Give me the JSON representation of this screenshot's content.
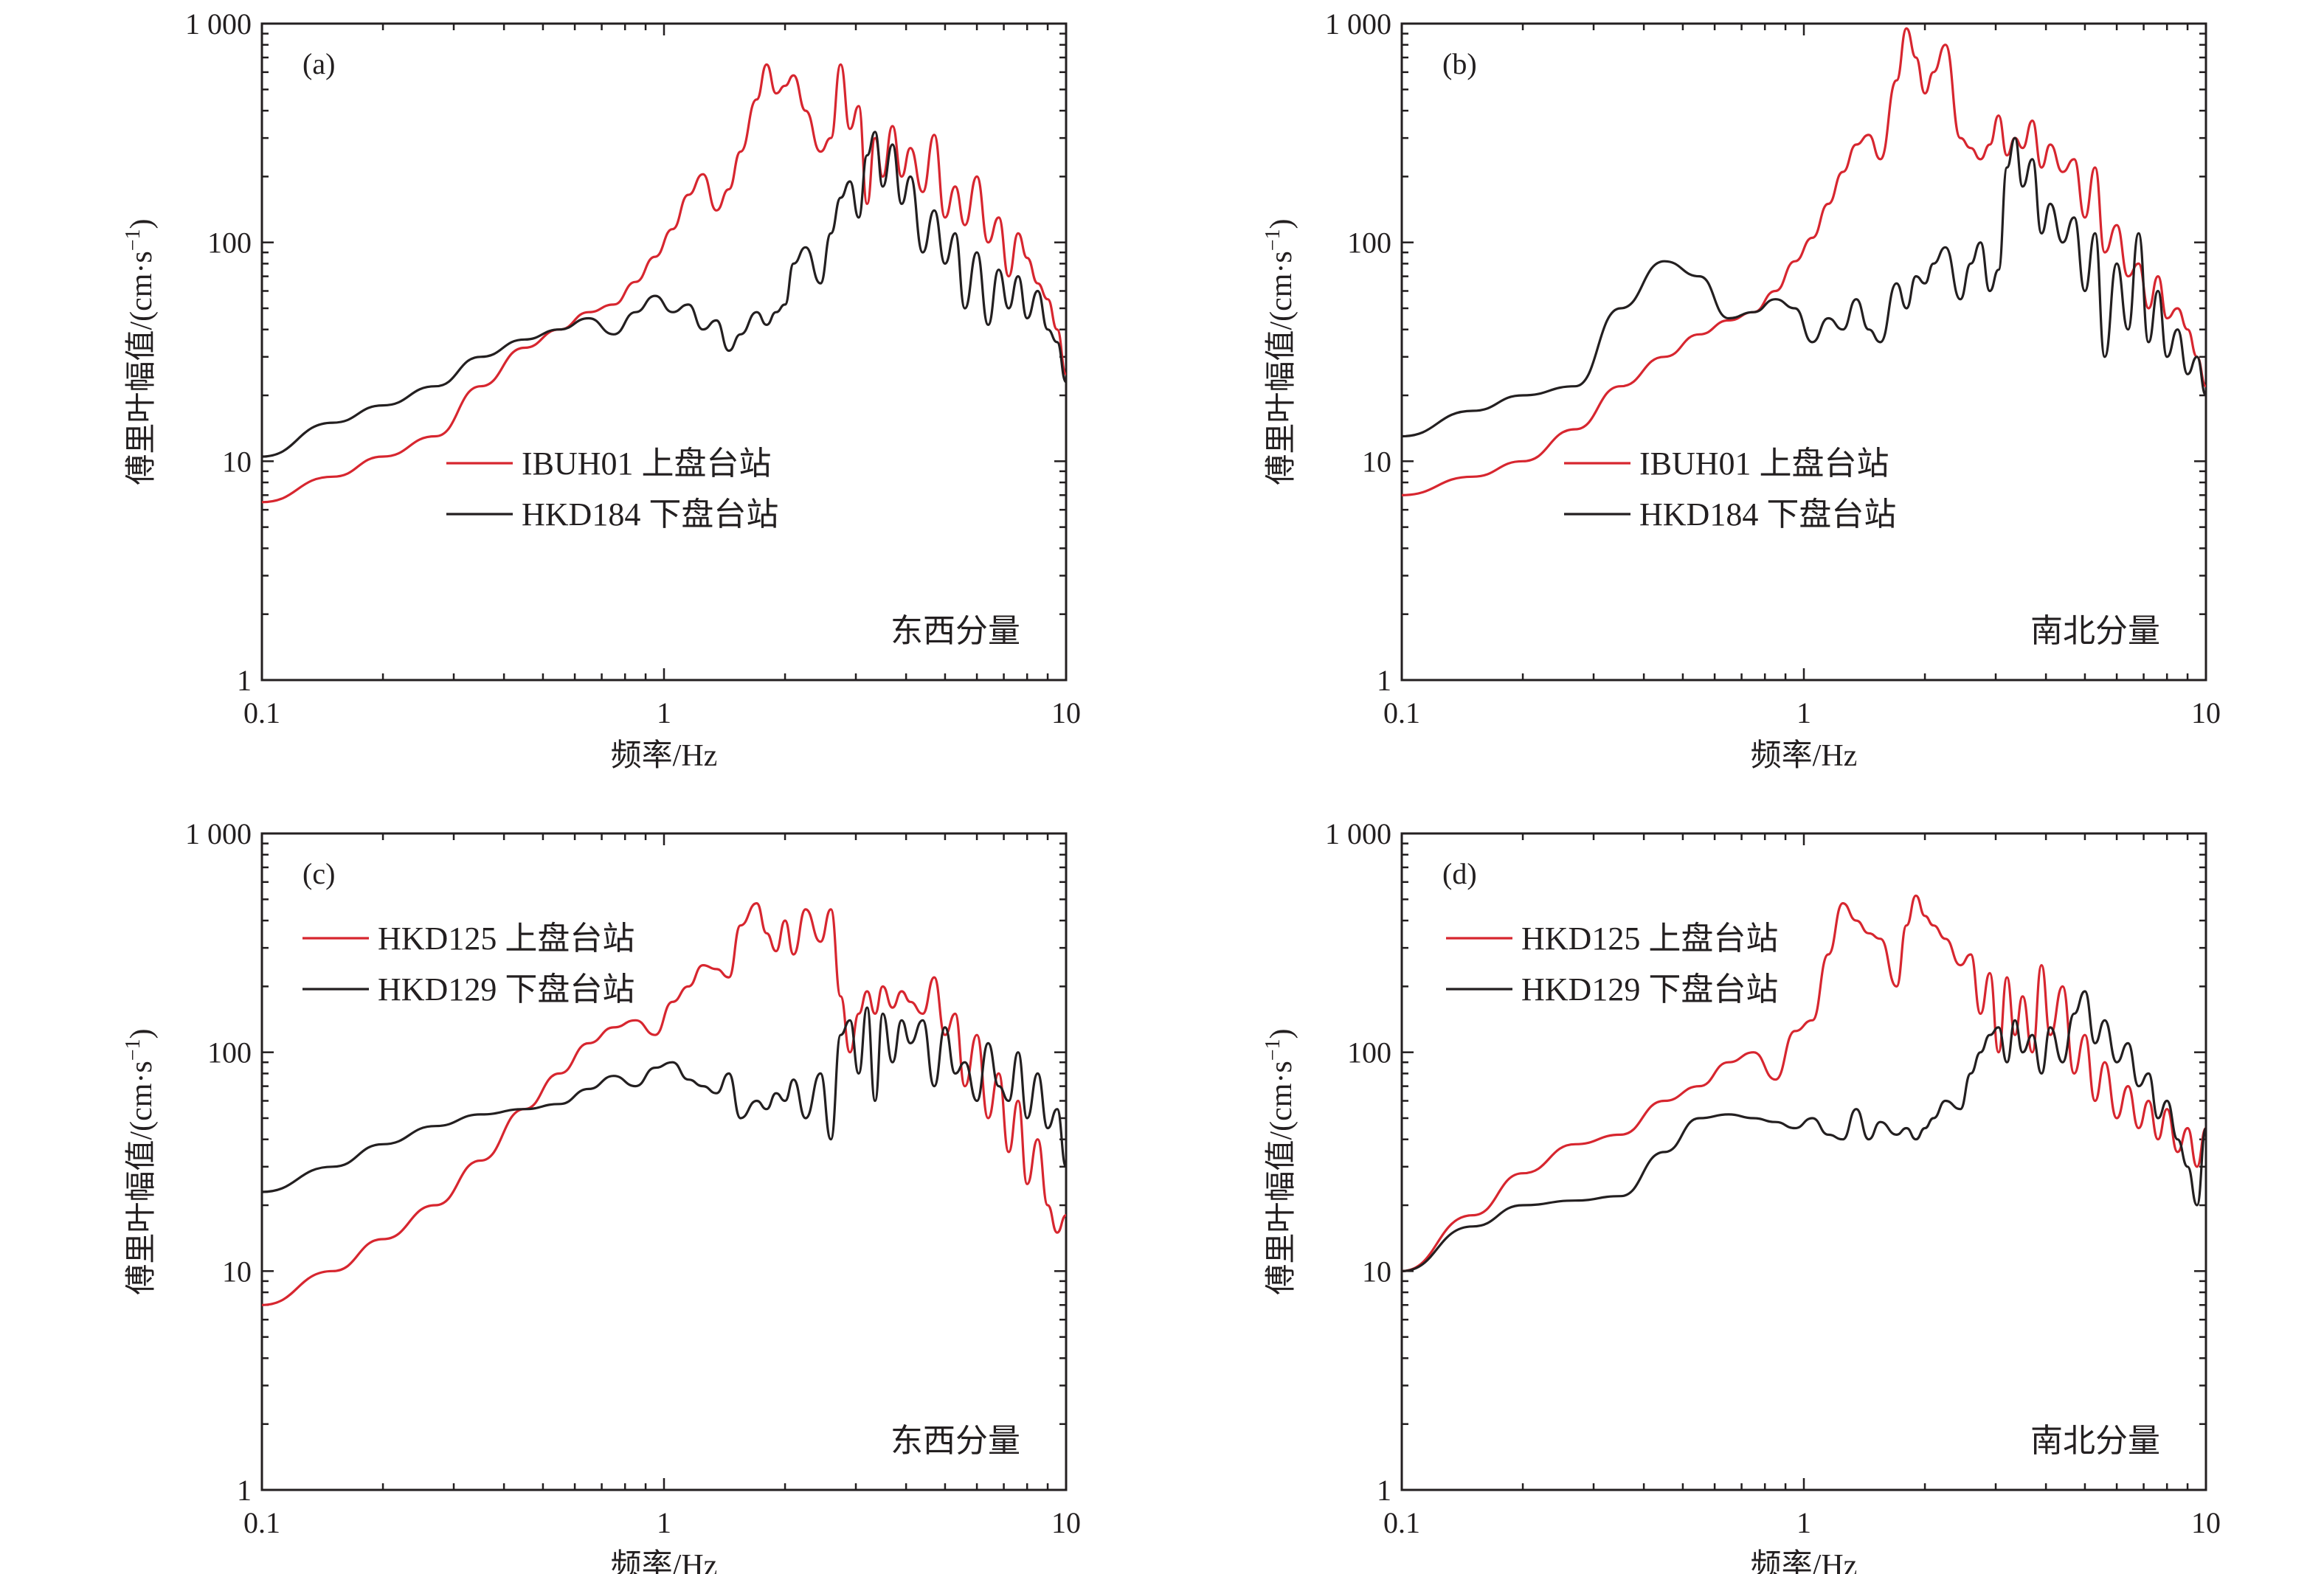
{
  "figure": {
    "x_axis_title": "频率/Hz",
    "y_axis_title": "傅里叶幅值/(cm·s",
    "y_axis_title_sup": "−1",
    "y_axis_title_end": ")",
    "x_tick_labels": [
      "0.1",
      "1",
      "10"
    ],
    "y_tick_labels": [
      "1",
      "10",
      "100",
      "1 000"
    ]
  },
  "colors": {
    "upper": "#d7262f",
    "lower": "#231f20"
  },
  "chart_data": [
    {
      "type": "line",
      "panel": "(a)",
      "component": "东西分量",
      "xscale": "log",
      "yscale": "log",
      "xlim": [
        0.1,
        10
      ],
      "ylim": [
        1,
        1000
      ],
      "legend_position": "middle-left",
      "series": [
        {
          "name": "IBUH01 上盘台站",
          "color": "#d7262f",
          "x": [
            0.1,
            0.15,
            0.2,
            0.27,
            0.35,
            0.45,
            0.55,
            0.65,
            0.75,
            0.85,
            0.95,
            1.05,
            1.15,
            1.25,
            1.35,
            1.45,
            1.55,
            1.7,
            1.8,
            1.9,
            2.0,
            2.1,
            2.25,
            2.45,
            2.6,
            2.75,
            2.9,
            3.05,
            3.2,
            3.35,
            3.5,
            3.7,
            3.9,
            4.1,
            4.4,
            4.7,
            5.0,
            5.3,
            5.6,
            6.0,
            6.4,
            6.8,
            7.2,
            7.6,
            8.0,
            8.5,
            9.0,
            9.5,
            10.0
          ],
          "y": [
            6.5,
            8.5,
            10.5,
            13,
            22,
            33,
            40,
            48,
            52,
            66,
            86,
            115,
            165,
            205,
            140,
            175,
            260,
            450,
            650,
            480,
            520,
            580,
            400,
            260,
            300,
            650,
            330,
            420,
            150,
            300,
            200,
            340,
            200,
            270,
            170,
            310,
            130,
            180,
            120,
            200,
            100,
            130,
            70,
            110,
            85,
            65,
            55,
            40,
            25
          ]
        },
        {
          "name": "HKD184 下盘台站",
          "color": "#231f20",
          "x": [
            0.1,
            0.15,
            0.2,
            0.27,
            0.35,
            0.45,
            0.55,
            0.65,
            0.75,
            0.85,
            0.95,
            1.05,
            1.15,
            1.25,
            1.35,
            1.45,
            1.55,
            1.7,
            1.8,
            1.9,
            2.0,
            2.1,
            2.25,
            2.45,
            2.6,
            2.75,
            2.9,
            3.05,
            3.2,
            3.35,
            3.5,
            3.7,
            3.9,
            4.1,
            4.4,
            4.7,
            5.0,
            5.3,
            5.6,
            6.0,
            6.4,
            6.8,
            7.2,
            7.6,
            8.0,
            8.5,
            9.0,
            9.5,
            10.0
          ],
          "y": [
            10.5,
            15,
            18,
            22,
            30,
            36,
            40,
            45,
            38,
            48,
            57,
            48,
            52,
            40,
            44,
            32,
            38,
            48,
            42,
            48,
            52,
            80,
            95,
            65,
            110,
            160,
            190,
            130,
            250,
            320,
            180,
            280,
            150,
            200,
            90,
            140,
            80,
            110,
            50,
            90,
            42,
            75,
            50,
            70,
            45,
            60,
            40,
            35,
            23
          ]
        }
      ]
    },
    {
      "type": "line",
      "panel": "(b)",
      "component": "南北分量",
      "xscale": "log",
      "yscale": "log",
      "xlim": [
        0.1,
        10
      ],
      "ylim": [
        1,
        1000
      ],
      "legend_position": "middle-left",
      "series": [
        {
          "name": "IBUH01 上盘台站",
          "color": "#d7262f",
          "x": [
            0.1,
            0.15,
            0.2,
            0.27,
            0.35,
            0.45,
            0.55,
            0.65,
            0.75,
            0.85,
            0.95,
            1.05,
            1.15,
            1.25,
            1.35,
            1.45,
            1.55,
            1.7,
            1.8,
            1.9,
            2.0,
            2.1,
            2.25,
            2.45,
            2.6,
            2.75,
            2.9,
            3.05,
            3.2,
            3.35,
            3.5,
            3.7,
            3.9,
            4.1,
            4.4,
            4.7,
            5.0,
            5.3,
            5.6,
            6.0,
            6.4,
            6.8,
            7.2,
            7.6,
            8.0,
            8.5,
            9.0,
            9.5,
            10.0
          ],
          "y": [
            7,
            8.5,
            10,
            14,
            22,
            30,
            38,
            44,
            48,
            60,
            82,
            105,
            150,
            210,
            280,
            310,
            240,
            550,
            950,
            700,
            480,
            600,
            800,
            300,
            270,
            240,
            280,
            380,
            250,
            300,
            270,
            360,
            220,
            280,
            210,
            240,
            130,
            220,
            90,
            120,
            70,
            80,
            50,
            70,
            45,
            50,
            40,
            30,
            22
          ]
        },
        {
          "name": "HKD184 下盘台站",
          "color": "#231f20",
          "x": [
            0.1,
            0.15,
            0.2,
            0.27,
            0.35,
            0.45,
            0.55,
            0.65,
            0.75,
            0.85,
            0.95,
            1.05,
            1.15,
            1.25,
            1.35,
            1.45,
            1.55,
            1.7,
            1.8,
            1.9,
            2.0,
            2.1,
            2.25,
            2.45,
            2.6,
            2.75,
            2.9,
            3.05,
            3.2,
            3.35,
            3.5,
            3.7,
            3.9,
            4.1,
            4.4,
            4.7,
            5.0,
            5.3,
            5.6,
            6.0,
            6.4,
            6.8,
            7.2,
            7.6,
            8.0,
            8.5,
            9.0,
            9.5,
            10.0
          ],
          "y": [
            13,
            17,
            20,
            22,
            50,
            82,
            70,
            45,
            48,
            55,
            50,
            35,
            45,
            40,
            55,
            40,
            35,
            65,
            50,
            70,
            65,
            80,
            95,
            55,
            80,
            100,
            60,
            75,
            220,
            300,
            180,
            240,
            110,
            150,
            100,
            130,
            60,
            110,
            30,
            80,
            40,
            110,
            35,
            60,
            30,
            40,
            25,
            30,
            20
          ]
        }
      ]
    },
    {
      "type": "line",
      "panel": "(c)",
      "component": "东西分量",
      "xscale": "log",
      "yscale": "log",
      "xlim": [
        0.1,
        10
      ],
      "ylim": [
        1,
        1000
      ],
      "legend_position": "top-left",
      "series": [
        {
          "name": "HKD125 上盘台站",
          "color": "#d7262f",
          "x": [
            0.1,
            0.15,
            0.2,
            0.27,
            0.35,
            0.45,
            0.55,
            0.65,
            0.75,
            0.85,
            0.95,
            1.05,
            1.15,
            1.25,
            1.35,
            1.45,
            1.55,
            1.7,
            1.8,
            1.9,
            2.0,
            2.1,
            2.25,
            2.45,
            2.6,
            2.75,
            2.9,
            3.05,
            3.2,
            3.35,
            3.5,
            3.7,
            3.9,
            4.1,
            4.4,
            4.7,
            5.0,
            5.3,
            5.6,
            6.0,
            6.4,
            6.8,
            7.2,
            7.6,
            8.0,
            8.5,
            9.0,
            9.5,
            10.0
          ],
          "y": [
            7,
            10,
            14,
            20,
            32,
            55,
            80,
            110,
            130,
            140,
            120,
            170,
            200,
            250,
            240,
            220,
            380,
            480,
            350,
            290,
            400,
            280,
            450,
            320,
            450,
            180,
            100,
            150,
            190,
            150,
            200,
            160,
            190,
            170,
            150,
            220,
            120,
            150,
            70,
            120,
            50,
            80,
            35,
            60,
            25,
            40,
            20,
            15,
            18
          ]
        },
        {
          "name": "HKD129 下盘台站",
          "color": "#231f20",
          "x": [
            0.1,
            0.15,
            0.2,
            0.27,
            0.35,
            0.45,
            0.55,
            0.65,
            0.75,
            0.85,
            0.95,
            1.05,
            1.15,
            1.25,
            1.35,
            1.45,
            1.55,
            1.7,
            1.8,
            1.9,
            2.0,
            2.1,
            2.25,
            2.45,
            2.6,
            2.75,
            2.9,
            3.05,
            3.2,
            3.35,
            3.5,
            3.7,
            3.9,
            4.1,
            4.4,
            4.7,
            5.0,
            5.3,
            5.6,
            6.0,
            6.4,
            6.8,
            7.2,
            7.6,
            8.0,
            8.5,
            9.0,
            9.5,
            10.0
          ],
          "y": [
            23,
            30,
            38,
            46,
            52,
            55,
            58,
            68,
            78,
            70,
            85,
            90,
            75,
            70,
            65,
            80,
            50,
            60,
            55,
            65,
            60,
            75,
            50,
            80,
            40,
            120,
            140,
            80,
            160,
            60,
            150,
            90,
            140,
            110,
            140,
            70,
            130,
            80,
            90,
            60,
            110,
            70,
            60,
            100,
            50,
            80,
            45,
            55,
            30
          ]
        }
      ]
    },
    {
      "type": "line",
      "panel": "(d)",
      "component": "南北分量",
      "xscale": "log",
      "yscale": "log",
      "xlim": [
        0.1,
        10
      ],
      "ylim": [
        1,
        1000
      ],
      "legend_position": "top-left",
      "series": [
        {
          "name": "HKD125 上盘台站",
          "color": "#d7262f",
          "x": [
            0.1,
            0.15,
            0.2,
            0.27,
            0.35,
            0.45,
            0.55,
            0.65,
            0.75,
            0.85,
            0.95,
            1.05,
            1.15,
            1.25,
            1.35,
            1.45,
            1.55,
            1.7,
            1.8,
            1.9,
            2.0,
            2.1,
            2.25,
            2.45,
            2.6,
            2.75,
            2.9,
            3.05,
            3.2,
            3.35,
            3.5,
            3.7,
            3.9,
            4.1,
            4.4,
            4.7,
            5.0,
            5.3,
            5.6,
            6.0,
            6.4,
            6.8,
            7.2,
            7.6,
            8.0,
            8.5,
            9.0,
            9.5,
            10.0
          ],
          "y": [
            10,
            18,
            28,
            38,
            42,
            60,
            70,
            90,
            100,
            75,
            125,
            140,
            280,
            480,
            400,
            350,
            330,
            200,
            380,
            520,
            420,
            380,
            330,
            250,
            280,
            150,
            230,
            100,
            220,
            120,
            180,
            100,
            250,
            120,
            200,
            80,
            120,
            60,
            90,
            50,
            70,
            45,
            60,
            40,
            55,
            35,
            45,
            30,
            45
          ]
        },
        {
          "name": "HKD129 下盘台站",
          "color": "#231f20",
          "x": [
            0.1,
            0.15,
            0.2,
            0.27,
            0.35,
            0.45,
            0.55,
            0.65,
            0.75,
            0.85,
            0.95,
            1.05,
            1.15,
            1.25,
            1.35,
            1.45,
            1.55,
            1.7,
            1.8,
            1.9,
            2.0,
            2.1,
            2.25,
            2.45,
            2.6,
            2.75,
            2.9,
            3.05,
            3.2,
            3.35,
            3.5,
            3.7,
            3.9,
            4.1,
            4.4,
            4.7,
            5.0,
            5.3,
            5.6,
            6.0,
            6.4,
            6.8,
            7.2,
            7.6,
            8.0,
            8.5,
            9.0,
            9.5,
            10.0
          ],
          "y": [
            10,
            16,
            20,
            21,
            22,
            35,
            50,
            52,
            50,
            48,
            45,
            50,
            42,
            40,
            55,
            40,
            48,
            42,
            45,
            40,
            45,
            50,
            60,
            55,
            80,
            100,
            120,
            130,
            90,
            140,
            100,
            120,
            80,
            130,
            90,
            150,
            190,
            110,
            140,
            90,
            110,
            70,
            80,
            50,
            60,
            40,
            30,
            20,
            45
          ]
        }
      ]
    }
  ]
}
